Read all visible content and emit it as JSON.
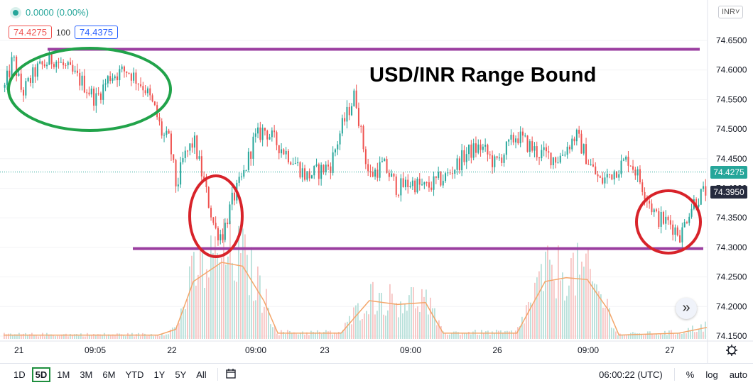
{
  "legend": {
    "change": "0.0000 (0.00%)"
  },
  "quotes": {
    "bid": "74.4275",
    "spread": "100",
    "ask": "74.4375"
  },
  "currency": "INR",
  "price_tags": {
    "current": "74.4275",
    "close": "74.3950"
  },
  "title": "USD/INR Range Bound",
  "toolbar": {
    "ranges": [
      "1D",
      "5D",
      "1M",
      "3M",
      "6M",
      "YTD",
      "1Y",
      "5Y",
      "All"
    ],
    "active_range": "5D",
    "time": "06:00:22 (UTC)",
    "percent": "%",
    "log": "log",
    "auto": "auto"
  },
  "colors": {
    "up": "#26a69a",
    "down": "#ef5350",
    "line": "#f4a66a",
    "band": "#9b3fa0",
    "circle_green": "#21a34a",
    "circle_red": "#d8232a"
  },
  "icons": {
    "settings": "gear-icon",
    "compare": "calendar-icon",
    "scroll": "chevron-right-icon"
  },
  "chart_data": {
    "type": "candlestick",
    "title": "USD/INR Range Bound",
    "y_ticks": [
      "74.6500",
      "74.6000",
      "74.5500",
      "74.5000",
      "74.4500",
      "74.4000",
      "74.3500",
      "74.3000",
      "74.2500",
      "74.2000",
      "74.1500"
    ],
    "ylim": [
      74.14,
      74.67
    ],
    "x_ticks": [
      "21",
      "09:05",
      "22",
      "09:00",
      "23",
      "09:00",
      "26",
      "09:00",
      "27"
    ],
    "current_price": 74.4275,
    "last_close": 74.395,
    "ranges": [
      {
        "name": "resistance",
        "price": 74.635
      },
      {
        "name": "support",
        "price": 74.298
      }
    ],
    "price_path": [
      {
        "t": 0,
        "p": 74.57
      },
      {
        "t": 0.012,
        "p": 74.62
      },
      {
        "t": 0.025,
        "p": 74.56
      },
      {
        "t": 0.045,
        "p": 74.6
      },
      {
        "t": 0.07,
        "p": 74.62
      },
      {
        "t": 0.09,
        "p": 74.6
      },
      {
        "t": 0.11,
        "p": 74.58
      },
      {
        "t": 0.13,
        "p": 74.55
      },
      {
        "t": 0.15,
        "p": 74.59
      },
      {
        "t": 0.175,
        "p": 74.6
      },
      {
        "t": 0.2,
        "p": 74.57
      },
      {
        "t": 0.215,
        "p": 74.53
      },
      {
        "t": 0.225,
        "p": 74.49
      },
      {
        "t": 0.235,
        "p": 74.48
      },
      {
        "t": 0.245,
        "p": 74.4
      },
      {
        "t": 0.255,
        "p": 74.45
      },
      {
        "t": 0.27,
        "p": 74.48
      },
      {
        "t": 0.28,
        "p": 74.43
      },
      {
        "t": 0.29,
        "p": 74.38
      },
      {
        "t": 0.3,
        "p": 74.33
      },
      {
        "t": 0.31,
        "p": 74.32
      },
      {
        "t": 0.325,
        "p": 74.38
      },
      {
        "t": 0.34,
        "p": 74.42
      },
      {
        "t": 0.355,
        "p": 74.48
      },
      {
        "t": 0.37,
        "p": 74.5
      },
      {
        "t": 0.385,
        "p": 74.48
      },
      {
        "t": 0.41,
        "p": 74.45
      },
      {
        "t": 0.43,
        "p": 74.42
      },
      {
        "t": 0.45,
        "p": 74.43
      },
      {
        "t": 0.465,
        "p": 74.44
      },
      {
        "t": 0.48,
        "p": 74.5
      },
      {
        "t": 0.5,
        "p": 74.56
      },
      {
        "t": 0.51,
        "p": 74.48
      },
      {
        "t": 0.52,
        "p": 74.42
      },
      {
        "t": 0.54,
        "p": 74.44
      },
      {
        "t": 0.56,
        "p": 74.4
      },
      {
        "t": 0.58,
        "p": 74.41
      },
      {
        "t": 0.6,
        "p": 74.4
      },
      {
        "t": 0.63,
        "p": 74.42
      },
      {
        "t": 0.66,
        "p": 74.46
      },
      {
        "t": 0.68,
        "p": 74.47
      },
      {
        "t": 0.7,
        "p": 74.44
      },
      {
        "t": 0.73,
        "p": 74.49
      },
      {
        "t": 0.76,
        "p": 74.46
      },
      {
        "t": 0.79,
        "p": 74.45
      },
      {
        "t": 0.815,
        "p": 74.49
      },
      {
        "t": 0.835,
        "p": 74.44
      },
      {
        "t": 0.85,
        "p": 74.41
      },
      {
        "t": 0.87,
        "p": 74.43
      },
      {
        "t": 0.89,
        "p": 74.45
      },
      {
        "t": 0.9,
        "p": 74.43
      },
      {
        "t": 0.915,
        "p": 74.39
      },
      {
        "t": 0.93,
        "p": 74.35
      },
      {
        "t": 0.95,
        "p": 74.34
      },
      {
        "t": 0.965,
        "p": 74.32
      },
      {
        "t": 0.975,
        "p": 74.36
      },
      {
        "t": 0.985,
        "p": 74.38
      },
      {
        "t": 1.0,
        "p": 74.395
      }
    ],
    "volume_profile": [
      {
        "t": 0,
        "v": 0.02
      },
      {
        "t": 0.22,
        "v": 0.02
      },
      {
        "t": 0.245,
        "v": 0.05
      },
      {
        "t": 0.27,
        "v": 0.3
      },
      {
        "t": 0.31,
        "v": 0.4
      },
      {
        "t": 0.34,
        "v": 0.38
      },
      {
        "t": 0.37,
        "v": 0.2
      },
      {
        "t": 0.39,
        "v": 0.03
      },
      {
        "t": 0.48,
        "v": 0.03
      },
      {
        "t": 0.52,
        "v": 0.2
      },
      {
        "t": 0.56,
        "v": 0.18
      },
      {
        "t": 0.6,
        "v": 0.19
      },
      {
        "t": 0.625,
        "v": 0.03
      },
      {
        "t": 0.73,
        "v": 0.03
      },
      {
        "t": 0.77,
        "v": 0.3
      },
      {
        "t": 0.8,
        "v": 0.32
      },
      {
        "t": 0.83,
        "v": 0.31
      },
      {
        "t": 0.86,
        "v": 0.15
      },
      {
        "t": 0.875,
        "v": 0.02
      },
      {
        "t": 0.96,
        "v": 0.03
      },
      {
        "t": 1.0,
        "v": 0.06
      }
    ]
  }
}
